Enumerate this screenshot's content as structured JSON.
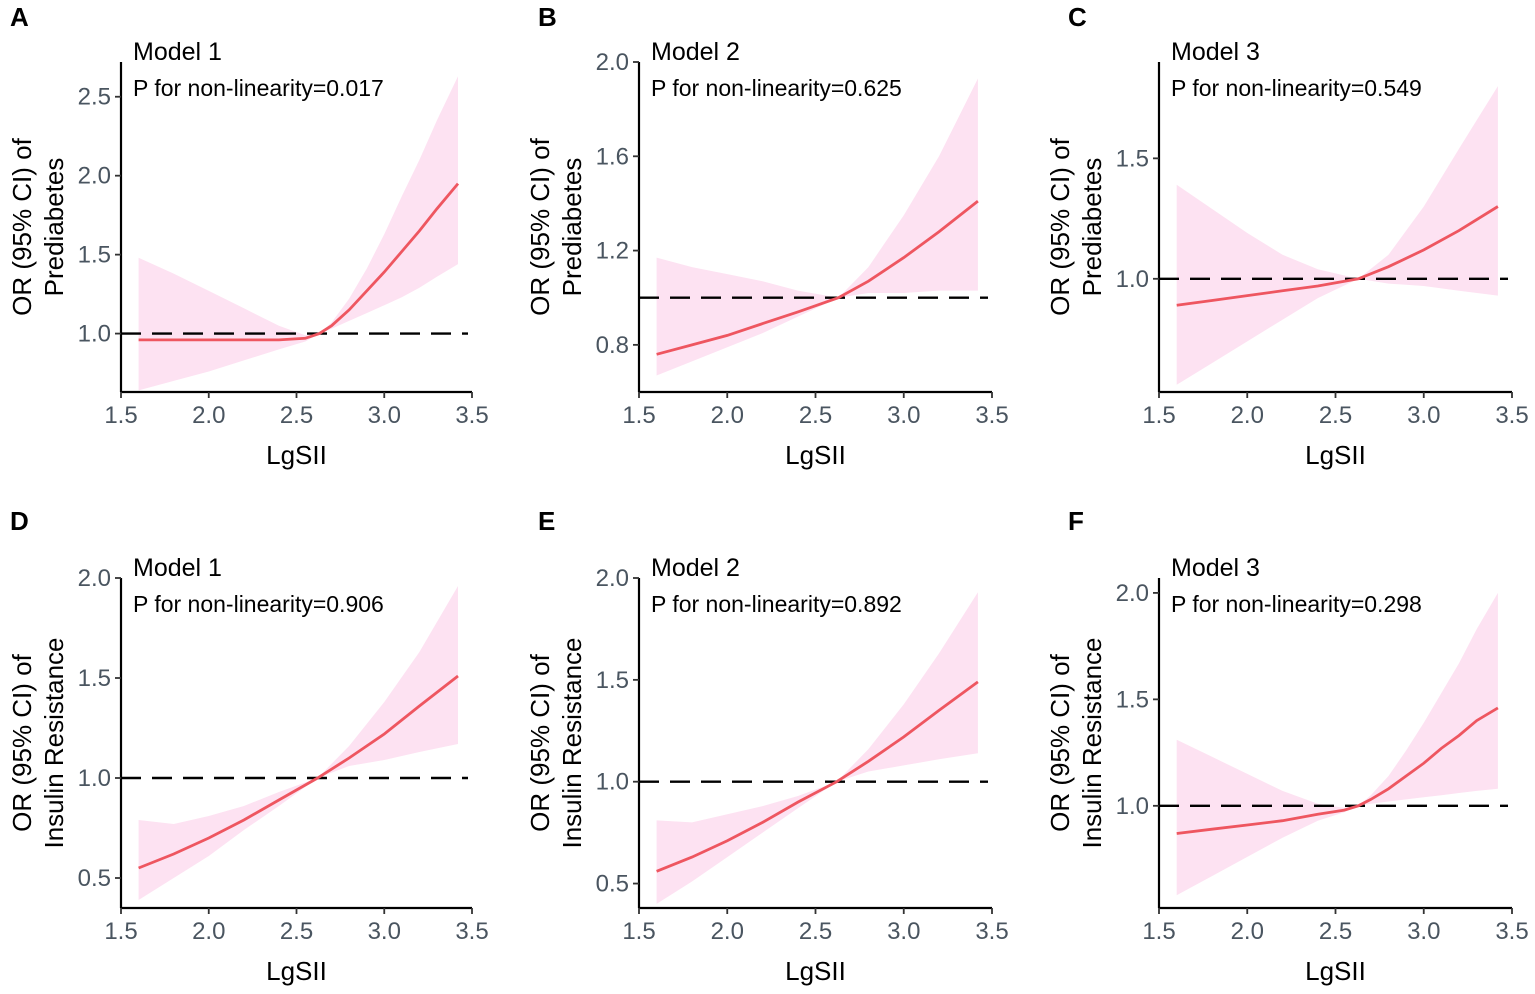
{
  "chart_data": [
    {
      "panel": "A",
      "type": "line",
      "title": "Model 1",
      "annotation": "P for non-linearity=0.017",
      "xlabel": "LgSII",
      "ylabel_lines": [
        "OR (95% CI) of",
        "Prediabetes"
      ],
      "xlim": [
        1.5,
        3.5
      ],
      "ylim": [
        0.63,
        2.72
      ],
      "xticks": [
        1.5,
        2.0,
        2.5,
        3.0,
        3.5
      ],
      "xtick_labels": [
        "1.5",
        "2.0",
        "2.5",
        "3.0",
        "3.5"
      ],
      "yticks": [
        1.0,
        1.5,
        2.0,
        2.5
      ],
      "ytick_labels": [
        "1.0",
        "1.5",
        "2.0",
        "2.5"
      ],
      "reference": 1.0,
      "series": [
        {
          "name": "OR",
          "x": [
            1.6,
            1.8,
            2.0,
            2.2,
            2.4,
            2.55,
            2.63,
            2.7,
            2.8,
            2.9,
            3.0,
            3.1,
            3.2,
            3.3,
            3.42
          ],
          "y": [
            0.96,
            0.96,
            0.96,
            0.96,
            0.96,
            0.97,
            1.0,
            1.05,
            1.15,
            1.27,
            1.39,
            1.52,
            1.65,
            1.79,
            1.95
          ],
          "lower": [
            0.64,
            0.7,
            0.76,
            0.83,
            0.9,
            0.95,
            1.0,
            1.03,
            1.08,
            1.13,
            1.18,
            1.23,
            1.29,
            1.36,
            1.44
          ],
          "upper": [
            1.48,
            1.38,
            1.27,
            1.16,
            1.05,
            0.99,
            1.0,
            1.07,
            1.22,
            1.41,
            1.63,
            1.87,
            2.1,
            2.35,
            2.63
          ]
        }
      ]
    },
    {
      "panel": "B",
      "type": "line",
      "title": "Model 2",
      "annotation": "P for non-linearity=0.625",
      "xlabel": "LgSII",
      "ylabel_lines": [
        "OR (95% CI) of",
        "Prediabetes"
      ],
      "xlim": [
        1.5,
        3.5
      ],
      "ylim": [
        0.6,
        2.0
      ],
      "xticks": [
        1.5,
        2.0,
        2.5,
        3.0,
        3.5
      ],
      "xtick_labels": [
        "1.5",
        "2.0",
        "2.5",
        "3.0",
        "3.5"
      ],
      "yticks": [
        0.8,
        1.2,
        1.6,
        2.0
      ],
      "ytick_labels": [
        "0.8",
        "1.2",
        "1.6",
        "2.0"
      ],
      "reference": 1.0,
      "series": [
        {
          "name": "OR",
          "x": [
            1.6,
            1.8,
            2.0,
            2.2,
            2.4,
            2.63,
            2.8,
            3.0,
            3.2,
            3.42
          ],
          "y": [
            0.76,
            0.8,
            0.84,
            0.89,
            0.94,
            1.0,
            1.07,
            1.17,
            1.28,
            1.41
          ],
          "lower": [
            0.67,
            0.73,
            0.79,
            0.85,
            0.92,
            1.0,
            1.02,
            1.02,
            1.03,
            1.03
          ],
          "upper": [
            1.17,
            1.13,
            1.1,
            1.07,
            1.03,
            1.0,
            1.13,
            1.35,
            1.6,
            1.93
          ]
        }
      ]
    },
    {
      "panel": "C",
      "type": "line",
      "title": "Model 3",
      "annotation": "P for non-linearity=0.549",
      "xlabel": "LgSII",
      "ylabel_lines": [
        "OR (95% CI) of",
        "Prediabetes"
      ],
      "xlim": [
        1.5,
        3.5
      ],
      "ylim": [
        0.53,
        1.9
      ],
      "xticks": [
        1.5,
        2.0,
        2.5,
        3.0,
        3.5
      ],
      "xtick_labels": [
        "1.5",
        "2.0",
        "2.5",
        "3.0",
        "3.5"
      ],
      "yticks": [
        1.0,
        1.5
      ],
      "ytick_labels": [
        "1.0",
        "1.5"
      ],
      "reference": 1.0,
      "series": [
        {
          "name": "OR",
          "x": [
            1.6,
            1.8,
            2.0,
            2.2,
            2.4,
            2.63,
            2.8,
            3.0,
            3.2,
            3.42
          ],
          "y": [
            0.89,
            0.91,
            0.93,
            0.95,
            0.97,
            1.0,
            1.05,
            1.12,
            1.2,
            1.3
          ],
          "lower": [
            0.56,
            0.65,
            0.74,
            0.83,
            0.92,
            1.0,
            0.98,
            0.97,
            0.95,
            0.93
          ],
          "upper": [
            1.39,
            1.29,
            1.19,
            1.1,
            1.04,
            1.0,
            1.1,
            1.3,
            1.54,
            1.8
          ]
        }
      ]
    },
    {
      "panel": "D",
      "type": "line",
      "title": "Model 1",
      "annotation": "P for non-linearity=0.906",
      "xlabel": "LgSII",
      "ylabel_lines": [
        "OR (95% CI) of",
        "Insulin Resistance"
      ],
      "xlim": [
        1.5,
        3.5
      ],
      "ylim": [
        0.35,
        2.0
      ],
      "xticks": [
        1.5,
        2.0,
        2.5,
        3.0,
        3.5
      ],
      "xtick_labels": [
        "1.5",
        "2.0",
        "2.5",
        "3.0",
        "3.5"
      ],
      "yticks": [
        0.5,
        1.0,
        1.5,
        2.0
      ],
      "ytick_labels": [
        "0.5",
        "1.0",
        "1.5",
        "2.0"
      ],
      "reference": 1.0,
      "series": [
        {
          "name": "OR",
          "x": [
            1.6,
            1.8,
            2.0,
            2.2,
            2.4,
            2.62,
            2.8,
            3.0,
            3.2,
            3.42
          ],
          "y": [
            0.55,
            0.62,
            0.7,
            0.79,
            0.89,
            1.0,
            1.1,
            1.22,
            1.36,
            1.51
          ],
          "lower": [
            0.39,
            0.5,
            0.61,
            0.74,
            0.86,
            1.0,
            1.06,
            1.09,
            1.13,
            1.17
          ],
          "upper": [
            0.79,
            0.77,
            0.81,
            0.86,
            0.93,
            1.0,
            1.16,
            1.38,
            1.63,
            1.96
          ]
        }
      ]
    },
    {
      "panel": "E",
      "type": "line",
      "title": "Model 2",
      "annotation": "P for non-linearity=0.892",
      "xlabel": "LgSII",
      "ylabel_lines": [
        "OR (95% CI) of",
        "Insulin Resistance"
      ],
      "xlim": [
        1.5,
        3.5
      ],
      "ylim": [
        0.38,
        2.0
      ],
      "xticks": [
        1.5,
        2.0,
        2.5,
        3.0,
        3.5
      ],
      "xtick_labels": [
        "1.5",
        "2.0",
        "2.5",
        "3.0",
        "3.5"
      ],
      "yticks": [
        0.5,
        1.0,
        1.5,
        2.0
      ],
      "ytick_labels": [
        "0.5",
        "1.0",
        "1.5",
        "2.0"
      ],
      "reference": 1.0,
      "series": [
        {
          "name": "OR",
          "x": [
            1.6,
            1.8,
            2.0,
            2.2,
            2.4,
            2.62,
            2.8,
            3.0,
            3.2,
            3.42
          ],
          "y": [
            0.56,
            0.63,
            0.71,
            0.8,
            0.9,
            1.0,
            1.1,
            1.22,
            1.35,
            1.49
          ],
          "lower": [
            0.4,
            0.51,
            0.63,
            0.75,
            0.87,
            1.0,
            1.05,
            1.08,
            1.11,
            1.14
          ],
          "upper": [
            0.81,
            0.8,
            0.84,
            0.88,
            0.93,
            1.0,
            1.16,
            1.38,
            1.63,
            1.93
          ]
        }
      ]
    },
    {
      "panel": "F",
      "type": "line",
      "title": "Model 3",
      "annotation": "P for non-linearity=0.298",
      "xlabel": "LgSII",
      "ylabel_lines": [
        "OR (95% CI) of",
        "Insulin Resistance"
      ],
      "xlim": [
        1.5,
        3.5
      ],
      "ylim": [
        0.52,
        2.07
      ],
      "xticks": [
        1.5,
        2.0,
        2.5,
        3.0,
        3.5
      ],
      "xtick_labels": [
        "1.5",
        "2.0",
        "2.5",
        "3.0",
        "3.5"
      ],
      "yticks": [
        1.0,
        1.5,
        2.0
      ],
      "ytick_labels": [
        "1.0",
        "1.5",
        "2.0"
      ],
      "reference": 1.0,
      "series": [
        {
          "name": "OR",
          "x": [
            1.6,
            1.8,
            2.0,
            2.2,
            2.4,
            2.55,
            2.63,
            2.7,
            2.8,
            2.9,
            3.0,
            3.1,
            3.2,
            3.3,
            3.42
          ],
          "y": [
            0.87,
            0.89,
            0.91,
            0.93,
            0.96,
            0.98,
            1.0,
            1.03,
            1.08,
            1.14,
            1.2,
            1.27,
            1.33,
            1.4,
            1.46
          ],
          "lower": [
            0.58,
            0.67,
            0.76,
            0.85,
            0.93,
            0.97,
            1.0,
            1.01,
            1.02,
            1.03,
            1.04,
            1.05,
            1.06,
            1.07,
            1.08
          ],
          "upper": [
            1.31,
            1.23,
            1.15,
            1.07,
            1.01,
            0.99,
            1.0,
            1.05,
            1.14,
            1.26,
            1.39,
            1.53,
            1.67,
            1.83,
            2.0
          ]
        }
      ]
    }
  ]
}
